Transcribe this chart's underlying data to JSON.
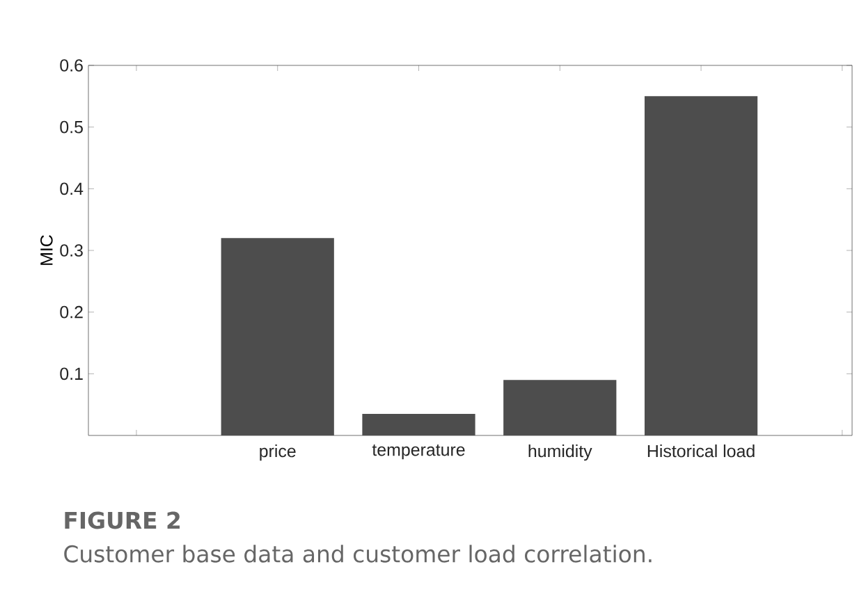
{
  "chart_data": {
    "type": "bar",
    "ylabel": "MIC",
    "categories": [
      null,
      "price",
      "temperature",
      "humidity",
      "Historical load",
      null
    ],
    "values": [
      null,
      0.32,
      0.035,
      0.09,
      0.55,
      null
    ],
    "color": "#4d4d4d",
    "ylim": [
      0,
      0.6
    ],
    "yticks": [
      0.1,
      0.2,
      0.3,
      0.4,
      0.5,
      0.6
    ],
    "annotations": [
      "FIGURE 2",
      "Customer base data and customer load correlation."
    ]
  }
}
